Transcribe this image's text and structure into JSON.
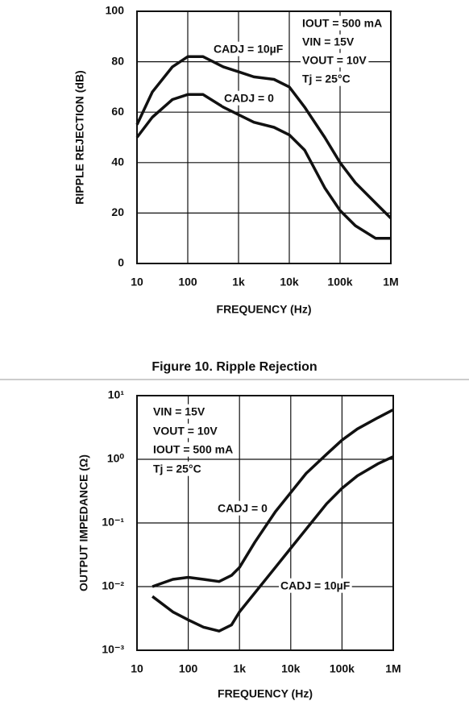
{
  "chart_data": [
    {
      "type": "line",
      "xscale": "log",
      "yscale": "linear",
      "grid": true,
      "xlabel": "FREQUENCY (Hz)",
      "ylabel": "RIPPLE REJECTION (dB)",
      "caption": "Figure 10. Ripple Rejection",
      "annotations": [
        "IOUT = 500 mA",
        "VIN = 15V",
        "VOUT = 10V",
        "Tj = 25°C"
      ],
      "xlim": [
        10,
        1000000
      ],
      "xticks": [
        10,
        100,
        {
          "value": 1000,
          "label": "1k"
        },
        {
          "value": 10000,
          "label": "10k"
        },
        {
          "value": 100000,
          "label": "100k"
        },
        {
          "value": 1000000,
          "label": "1M"
        }
      ],
      "ylim": [
        0,
        100
      ],
      "yticks": [
        0,
        20,
        40,
        60,
        80,
        100
      ],
      "x": [
        10,
        20,
        50,
        100,
        200,
        500,
        1000,
        2000,
        5000,
        10000,
        20000,
        50000,
        100000,
        200000,
        500000,
        1000000
      ],
      "series": [
        {
          "name": "CADJ = 10µF",
          "color": "#111111",
          "values": [
            55,
            68,
            78,
            82,
            82,
            78,
            76,
            74,
            73,
            70,
            62,
            50,
            40,
            32,
            24,
            18
          ]
        },
        {
          "name": "CADJ = 0",
          "color": "#111111",
          "values": [
            50,
            58,
            65,
            67,
            67,
            62,
            59,
            56,
            54,
            51,
            45,
            30,
            21,
            15,
            10,
            10
          ]
        }
      ]
    },
    {
      "type": "line",
      "xscale": "log",
      "yscale": "log",
      "grid": true,
      "xlabel": "FREQUENCY (Hz)",
      "ylabel": "OUTPUT IMPEDANCE (Ω)",
      "annotations": [
        "VIN = 15V",
        "VOUT = 10V",
        "IOUT = 500 mA",
        "Tj = 25°C"
      ],
      "xlim": [
        10,
        1000000
      ],
      "xticks": [
        10,
        100,
        {
          "value": 1000,
          "label": "1k"
        },
        {
          "value": 10000,
          "label": "10k"
        },
        {
          "value": 100000,
          "label": "100k"
        },
        {
          "value": 1000000,
          "label": "1M"
        }
      ],
      "ylim": [
        0.001,
        10
      ],
      "yticks": [
        {
          "value": 0.001,
          "label": "10⁻³"
        },
        {
          "value": 0.01,
          "label": "10⁻²"
        },
        {
          "value": 0.1,
          "label": "10⁻¹"
        },
        {
          "value": 1,
          "label": "10⁰"
        },
        {
          "value": 10,
          "label": "10¹"
        }
      ],
      "x": [
        20,
        50,
        100,
        200,
        400,
        700,
        1000,
        2000,
        5000,
        10000,
        20000,
        50000,
        100000,
        200000,
        500000,
        1000000
      ],
      "series": [
        {
          "name": "CADJ = 0",
          "color": "#111111",
          "values": [
            0.01,
            0.013,
            0.014,
            0.013,
            0.012,
            0.015,
            0.02,
            0.05,
            0.15,
            0.3,
            0.6,
            1.2,
            2,
            3,
            4.5,
            6
          ]
        },
        {
          "name": "CADJ = 10µF",
          "color": "#111111",
          "values": [
            0.007,
            0.004,
            0.003,
            0.0023,
            0.002,
            0.0025,
            0.004,
            0.008,
            0.02,
            0.04,
            0.08,
            0.2,
            0.35,
            0.55,
            0.85,
            1.1
          ]
        }
      ]
    }
  ]
}
